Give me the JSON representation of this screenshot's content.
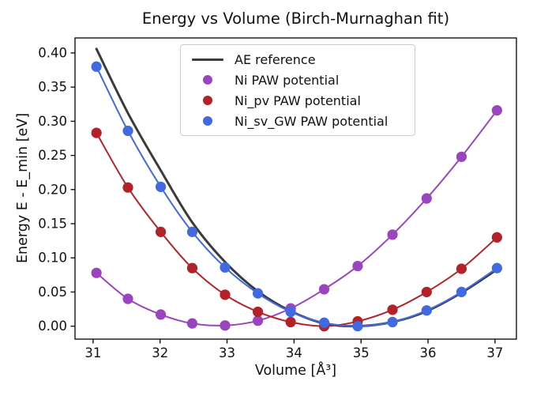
{
  "figure": {
    "title": "Energy vs Volume (Birch-Murnaghan fit)",
    "xlabel": "Volume [Å³]",
    "ylabel": "Energy E - E_min [eV]"
  },
  "legend": {
    "position": "upper center",
    "items": [
      {
        "label": "AE reference",
        "marker": "line",
        "color": "#3b3b3b"
      },
      {
        "label": "Ni PAW potential",
        "marker": "dot",
        "color": "#9a44bd"
      },
      {
        "label": "Ni_pv PAW potential",
        "marker": "dot",
        "color": "#b22228"
      },
      {
        "label": "Ni_sv_GW PAW potential",
        "marker": "dot",
        "color": "#4169e1"
      }
    ]
  },
  "chart_data": {
    "type": "scatter",
    "title": "Energy vs Volume (Birch-Murnaghan fit)",
    "xlabel": "Volume [Å³]",
    "ylabel": "Energy E - E_min [eV]",
    "grid": false,
    "legend_position": "upper center",
    "xlim": [
      30.73,
      37.32
    ],
    "ylim": [
      -0.019,
      0.422
    ],
    "xticks": [
      31,
      32,
      33,
      34,
      35,
      36,
      37
    ],
    "yticks": [
      0.0,
      0.05,
      0.1,
      0.15,
      0.2,
      0.25,
      0.3,
      0.35,
      0.4
    ],
    "x": [
      31.05,
      31.52,
      32.01,
      32.48,
      32.97,
      33.46,
      33.95,
      34.45,
      34.95,
      35.47,
      35.98,
      36.5,
      37.03
    ],
    "series": [
      {
        "name": "AE reference",
        "style": "line",
        "color": "#3b3b3b",
        "line_width": 3,
        "values": [
          0.406,
          0.312,
          0.228,
          0.152,
          0.094,
          0.051,
          0.022,
          0.004,
          0.0,
          0.006,
          0.022,
          0.049,
          0.083
        ]
      },
      {
        "name": "Ni PAW potential",
        "style": "line+markers",
        "color": "#9a44bd",
        "line_width": 2,
        "values": [
          0.078,
          0.04,
          0.017,
          0.004,
          0.001,
          0.008,
          0.026,
          0.054,
          0.088,
          0.134,
          0.187,
          0.248,
          0.316
        ]
      },
      {
        "name": "Ni_pv PAW potential",
        "style": "line+markers",
        "color": "#b22228",
        "line_width": 2,
        "values": [
          0.283,
          0.203,
          0.138,
          0.085,
          0.046,
          0.021,
          0.006,
          0.0,
          0.007,
          0.024,
          0.05,
          0.084,
          0.13
        ]
      },
      {
        "name": "Ni_sv_GW PAW potential",
        "style": "line+markers",
        "color": "#4169e1",
        "line_width": 2,
        "values": [
          0.38,
          0.286,
          0.204,
          0.138,
          0.086,
          0.048,
          0.021,
          0.005,
          0.0,
          0.006,
          0.023,
          0.05,
          0.085
        ]
      }
    ]
  }
}
